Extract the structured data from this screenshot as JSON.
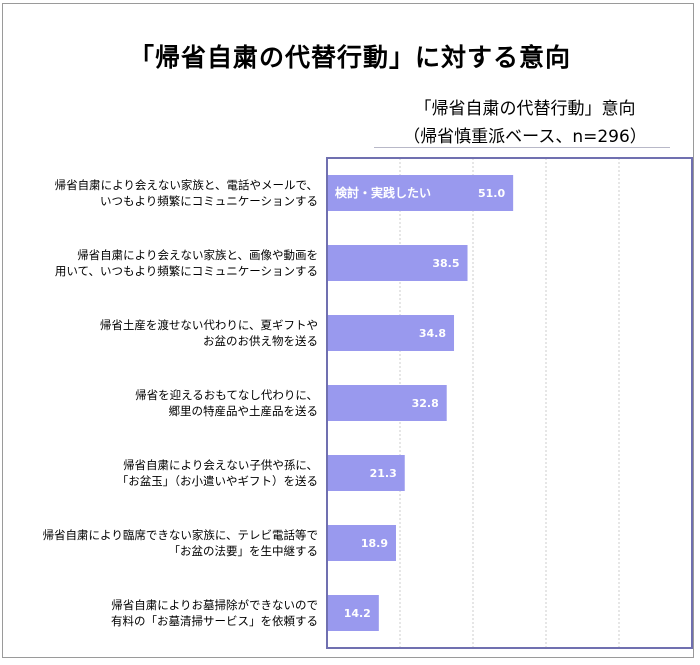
{
  "chart_data": {
    "type": "bar",
    "orientation": "horizontal",
    "title": "「帰省自粛の代替行動」に対する意向",
    "legend_title": "「帰省自粛の代替行動」意向",
    "legend_subtitle": "（帰省慎重派ベース、n=296）",
    "series_label": "検討・実践したい",
    "xlim": [
      0,
      100
    ],
    "grid": true,
    "bar_color": "#9999ee",
    "plot_border_color": "#7070b0",
    "categories": [
      [
        "帰省自粛により会えない家族と、電話やメールで、",
        "いつもより頻繁にコミュニケーションする"
      ],
      [
        "帰省自粛により会えない家族と、画像や動画を",
        "用いて、いつもより頻繁にコミュニケーションする"
      ],
      [
        "帰省土産を渡せない代わりに、夏ギフトや",
        "お盆のお供え物を送る"
      ],
      [
        "帰省を迎えるおもてなし代わりに、",
        "郷里の特産品や土産品を送る"
      ],
      [
        "帰省自粛により会えない子供や孫に、",
        "「お盆玉」（お小遣いやギフト）を送る"
      ],
      [
        "帰省自粛により臨席できない家族に、テレビ電話等で",
        "「お盆の法要」を生中継する"
      ],
      [
        "帰省自粛によりお墓掃除ができないので",
        "有料の「お墓清掃サービス」を依頼する"
      ]
    ],
    "values": [
      51.0,
      38.5,
      34.8,
      32.8,
      21.3,
      18.9,
      14.2
    ],
    "value_labels": [
      "51.0",
      "38.5",
      "34.8",
      "32.8",
      "21.3",
      "18.9",
      "14.2"
    ]
  }
}
